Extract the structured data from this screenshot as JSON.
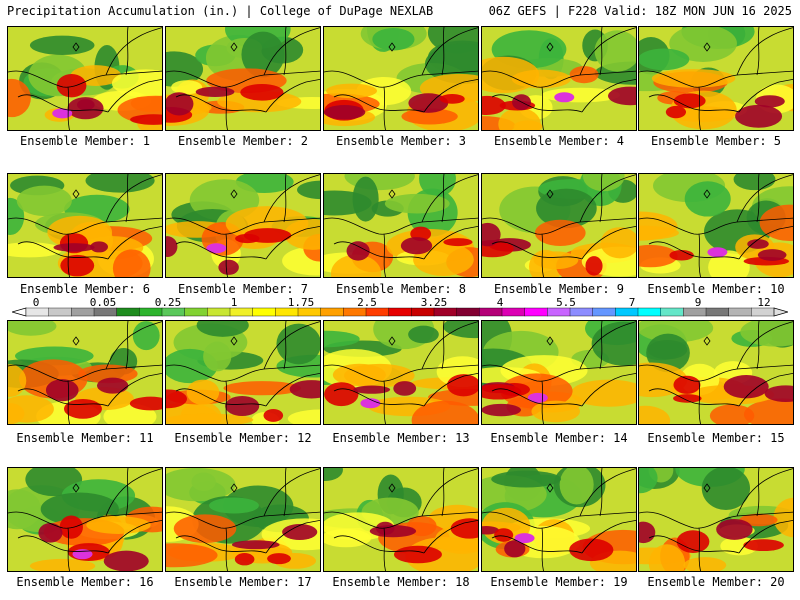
{
  "header": {
    "title_left": "Precipitation Accumulation (in.) | College of DuPage NEXLAB",
    "title_right": "06Z GEFS | F228 Valid: 18Z MON JUN 16 2025"
  },
  "panels": [
    {
      "label": "Ensemble Member: 1"
    },
    {
      "label": "Ensemble Member: 2"
    },
    {
      "label": "Ensemble Member: 3"
    },
    {
      "label": "Ensemble Member: 4"
    },
    {
      "label": "Ensemble Member: 5"
    },
    {
      "label": "Ensemble Member: 6"
    },
    {
      "label": "Ensemble Member: 7"
    },
    {
      "label": "Ensemble Member: 8"
    },
    {
      "label": "Ensemble Member: 9"
    },
    {
      "label": "Ensemble Member: 10"
    },
    {
      "label": "Ensemble Member: 11"
    },
    {
      "label": "Ensemble Member: 12"
    },
    {
      "label": "Ensemble Member: 13"
    },
    {
      "label": "Ensemble Member: 14"
    },
    {
      "label": "Ensemble Member: 15"
    },
    {
      "label": "Ensemble Member: 16"
    },
    {
      "label": "Ensemble Member: 17"
    },
    {
      "label": "Ensemble Member: 18"
    },
    {
      "label": "Ensemble Member: 19"
    },
    {
      "label": "Ensemble Member: 20"
    }
  ],
  "colorbar": {
    "labels": [
      "0",
      "0.05",
      "0.25",
      "1",
      "1.75",
      "2.5",
      "3.25",
      "4",
      "5.5",
      "7",
      "9",
      "12"
    ],
    "colors": [
      "#e6e6e6",
      "#c8c8c8",
      "#a0a0a0",
      "#787878",
      "#1e8c1e",
      "#2db42d",
      "#5ac85a",
      "#82d232",
      "#c8e632",
      "#f0f028",
      "#ffff00",
      "#ffe600",
      "#ffc800",
      "#ffa000",
      "#ff7800",
      "#ff3c00",
      "#e60000",
      "#c80000",
      "#a00028",
      "#820032",
      "#b40078",
      "#dc00b4",
      "#ff00ff",
      "#c864ff",
      "#8c8cff",
      "#6496ff",
      "#00c8ff",
      "#00ffff",
      "#64e6c8",
      "#a0a0a0",
      "#787878",
      "#b4b4b4",
      "#d2d2d2"
    ]
  },
  "palette": {
    "dark_green": "#2e8b2e",
    "green": "#3cb43c",
    "light_green": "#82c832",
    "yellow_green": "#c8dc32",
    "yellow": "#ffff32",
    "orange": "#ffb400",
    "red_orange": "#ff5a00",
    "red": "#dc0000",
    "dark_red": "#a00028",
    "magenta": "#dc32dc"
  }
}
